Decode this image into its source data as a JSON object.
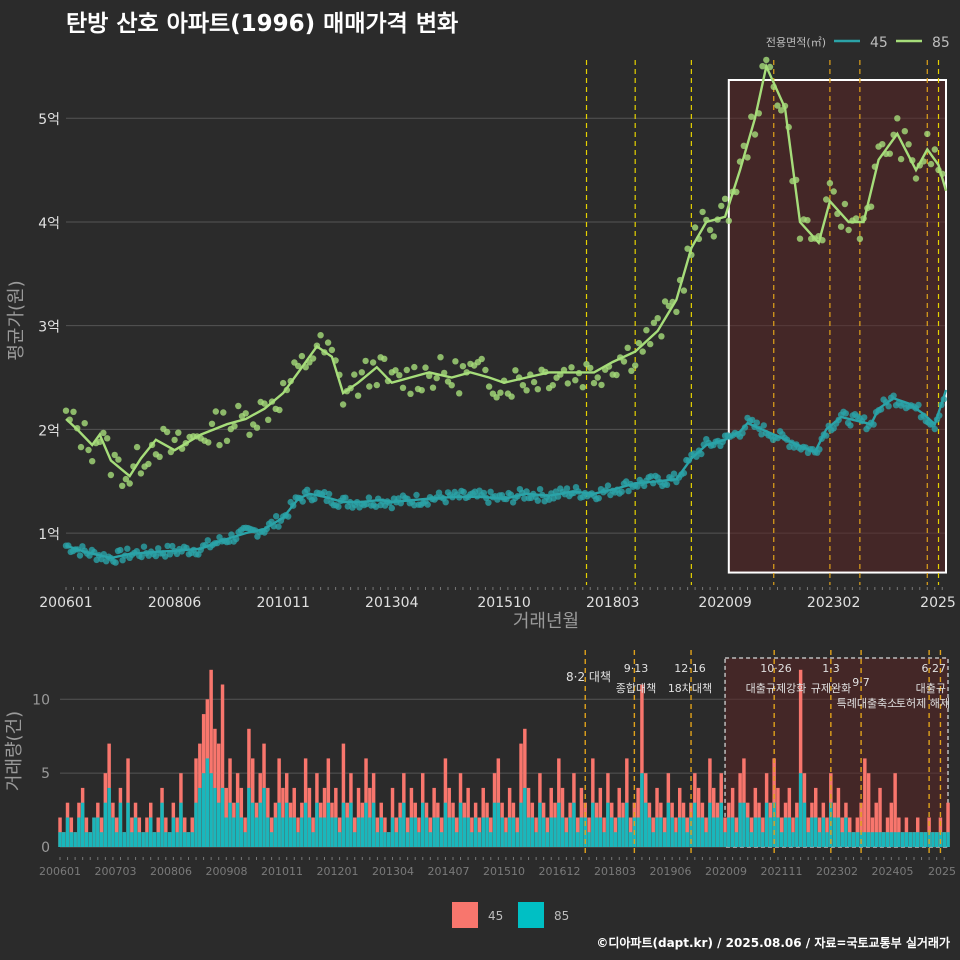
{
  "title": "탄방 산호 아파트(1996) 매매가격 변화",
  "footer": "©디아파트(dapt.kr) / 2025.08.06 / 자료=국토교통부 실거래가",
  "colors": {
    "bg": "#2b2b2b",
    "s45": "#2ba3a8",
    "s85": "#a6dd7a",
    "bar45": "#f8766d",
    "bar85": "#00bfc4",
    "policy": "#e6d200",
    "policy2": "#e0a21b",
    "band": "#5a2525"
  },
  "price_chart": {
    "ylabel": "평균가(원)",
    "xlabel": "거래년월",
    "y_ticks": [
      "1억",
      "2억",
      "3억",
      "4억",
      "5억"
    ],
    "x_ticks": [
      "200601",
      "200806",
      "201011",
      "201304",
      "201510",
      "201803",
      "202009",
      "202302",
      "2025"
    ],
    "legend_title": "전용면적(㎡)",
    "legend_items": [
      "45",
      "85"
    ]
  },
  "volume_chart": {
    "ylabel": "거래량(건)",
    "y_ticks": [
      "0",
      "5",
      "10"
    ],
    "x_ticks": [
      "200601",
      "200703",
      "200806",
      "200908",
      "201011",
      "201201",
      "201304",
      "201407",
      "201510",
      "201612",
      "201803",
      "201906",
      "202009",
      "202111",
      "202302",
      "202405",
      "2025"
    ],
    "policy_labels": [
      {
        "date": "8·2",
        "name": "대책"
      },
      {
        "date": "9·13",
        "name": "종합대책"
      },
      {
        "date": "12·16",
        "name": "18차대책"
      },
      {
        "date": "10·26",
        "name": "대출규제강화"
      },
      {
        "date": "1·3",
        "name": "규제완화"
      },
      {
        "date": "9·7",
        "name": "특례대출축소"
      },
      {
        "date": "",
        "name": "토허제 해제"
      },
      {
        "date": "6·27",
        "name": "대출규"
      }
    ],
    "legend_items": [
      "45",
      "85"
    ]
  },
  "chart_data": [
    {
      "type": "line",
      "title": "탄방 산호 아파트(1996) 매매가격 변화",
      "xlabel": "거래년월",
      "ylabel": "평균가(원)",
      "x_range": [
        "2006-01",
        "2025-08"
      ],
      "ylim": [
        0.5,
        5.6
      ],
      "unit": "억",
      "series": [
        {
          "name": "45",
          "points": [
            [
              "2006-01",
              0.88
            ],
            [
              "2006-06",
              0.82
            ],
            [
              "2007-01",
              0.76
            ],
            [
              "2007-06",
              0.8
            ],
            [
              "2008-01",
              0.82
            ],
            [
              "2008-06",
              0.83
            ],
            [
              "2009-01",
              0.85
            ],
            [
              "2009-06",
              0.92
            ],
            [
              "2010-01",
              1.0
            ],
            [
              "2010-06",
              1.04
            ],
            [
              "2010-11",
              1.15
            ],
            [
              "2011-03",
              1.33
            ],
            [
              "2011-06",
              1.38
            ],
            [
              "2011-10",
              1.35
            ],
            [
              "2012-03",
              1.3
            ],
            [
              "2012-08",
              1.3
            ],
            [
              "2013-01",
              1.32
            ],
            [
              "2013-04",
              1.3
            ],
            [
              "2013-10",
              1.32
            ],
            [
              "2014-04",
              1.34
            ],
            [
              "2014-10",
              1.35
            ],
            [
              "2015-04",
              1.35
            ],
            [
              "2015-10",
              1.33
            ],
            [
              "2016-04",
              1.38
            ],
            [
              "2016-10",
              1.36
            ],
            [
              "2017-04",
              1.4
            ],
            [
              "2017-10",
              1.38
            ],
            [
              "2018-03",
              1.42
            ],
            [
              "2018-09",
              1.48
            ],
            [
              "2019-03",
              1.5
            ],
            [
              "2019-08",
              1.52
            ],
            [
              "2019-12",
              1.72
            ],
            [
              "2020-04",
              1.85
            ],
            [
              "2020-09",
              1.9
            ],
            [
              "2021-01",
              1.98
            ],
            [
              "2021-03",
              2.06
            ],
            [
              "2022-09",
              1.78
            ],
            [
              "2022-12",
              2.0
            ],
            [
              "2023-04",
              2.12
            ],
            [
              "2023-12",
              2.05
            ],
            [
              "2024-02",
              2.2
            ],
            [
              "2024-06",
              2.3
            ],
            [
              "2024-10",
              2.25
            ],
            [
              "2025-02",
              2.15
            ],
            [
              "2025-05",
              2.05
            ],
            [
              "2025-08",
              2.38
            ]
          ]
        },
        {
          "name": "85",
          "points": [
            [
              "2006-01",
              2.1
            ],
            [
              "2006-04",
              2.0
            ],
            [
              "2006-08",
              1.85
            ],
            [
              "2006-10",
              1.95
            ],
            [
              "2007-01",
              1.7
            ],
            [
              "2007-06",
              1.55
            ],
            [
              "2007-09",
              1.72
            ],
            [
              "2008-01",
              1.9
            ],
            [
              "2008-06",
              1.8
            ],
            [
              "2009-01",
              1.95
            ],
            [
              "2009-08",
              2.05
            ],
            [
              "2010-01",
              2.1
            ],
            [
              "2010-06",
              2.2
            ],
            [
              "2010-11",
              2.35
            ],
            [
              "2011-03",
              2.55
            ],
            [
              "2011-08",
              2.8
            ],
            [
              "2011-12",
              2.7
            ],
            [
              "2012-03",
              2.35
            ],
            [
              "2012-07",
              2.45
            ],
            [
              "2012-12",
              2.6
            ],
            [
              "2013-04",
              2.45
            ],
            [
              "2013-09",
              2.5
            ],
            [
              "2014-02",
              2.55
            ],
            [
              "2014-08",
              2.5
            ],
            [
              "2015-01",
              2.55
            ],
            [
              "2015-06",
              2.5
            ],
            [
              "2015-10",
              2.45
            ],
            [
              "2016-04",
              2.5
            ],
            [
              "2016-10",
              2.55
            ],
            [
              "2017-04",
              2.55
            ],
            [
              "2017-10",
              2.55
            ],
            [
              "2018-03",
              2.65
            ],
            [
              "2018-09",
              2.75
            ],
            [
              "2019-03",
              2.95
            ],
            [
              "2019-08",
              3.25
            ],
            [
              "2019-12",
              3.75
            ],
            [
              "2020-04",
              4.0
            ],
            [
              "2020-09",
              4.05
            ],
            [
              "2021-01",
              4.5
            ],
            [
              "2021-05",
              5.0
            ],
            [
              "2021-08",
              5.5
            ],
            [
              "2022-01",
              5.1
            ],
            [
              "2022-05",
              4.0
            ],
            [
              "2022-10",
              3.8
            ],
            [
              "2023-01",
              4.2
            ],
            [
              "2023-06",
              4.0
            ],
            [
              "2023-10",
              4.0
            ],
            [
              "2024-02",
              4.6
            ],
            [
              "2024-07",
              4.85
            ],
            [
              "2024-12",
              4.5
            ],
            [
              "2025-03",
              4.7
            ],
            [
              "2025-06",
              4.55
            ],
            [
              "2025-08",
              4.3
            ]
          ]
        }
      ]
    },
    {
      "type": "bar",
      "ylabel": "거래량(건)",
      "x_range": [
        "2006-01",
        "2025-08"
      ],
      "ylim": [
        0,
        13
      ],
      "monthly_profile": {
        "45": [
          2,
          1,
          3,
          2,
          1,
          3,
          4,
          2,
          1,
          2,
          3,
          2,
          5,
          7,
          3,
          2,
          4,
          1,
          6,
          2,
          3,
          2,
          1,
          2,
          3,
          1,
          2,
          4,
          2,
          1,
          3,
          2,
          5,
          2,
          1,
          2,
          6,
          7,
          9,
          10,
          12,
          8,
          7,
          11,
          4,
          6,
          3,
          5,
          4,
          2,
          8,
          6,
          3,
          5,
          7,
          4,
          2,
          3,
          6,
          4,
          5,
          3,
          4,
          2,
          3,
          6,
          4,
          2,
          5,
          3,
          4,
          6,
          3,
          4,
          2,
          7,
          3,
          5,
          2,
          4,
          3,
          6,
          4,
          5,
          2,
          3,
          2,
          1,
          4,
          2,
          3,
          5,
          2,
          4,
          3,
          2,
          5,
          3,
          2,
          4,
          3,
          2,
          6,
          4,
          3,
          2,
          5,
          3,
          4,
          2,
          3,
          2,
          4,
          3,
          2,
          5,
          6,
          3,
          2,
          4,
          3,
          2,
          7,
          8,
          4,
          3,
          2,
          5,
          3,
          2,
          4,
          3,
          6,
          4,
          2,
          3,
          5,
          2,
          4,
          3,
          2,
          6,
          3,
          4,
          2,
          5,
          3,
          2,
          4,
          3,
          6,
          2,
          3,
          4,
          11,
          5,
          3,
          2,
          4,
          3,
          2,
          5,
          3,
          2,
          4,
          3,
          2,
          3,
          5,
          4,
          3,
          2,
          6,
          4,
          3,
          5,
          2,
          3,
          4,
          2,
          5,
          6,
          3,
          2,
          4,
          3,
          2,
          5,
          3,
          6,
          4,
          2,
          3,
          4,
          2,
          3,
          12,
          5,
          2,
          3,
          4,
          2,
          3,
          2,
          5,
          3,
          4,
          2,
          3,
          2,
          1,
          2,
          3,
          6,
          5,
          2,
          3,
          4,
          1,
          2,
          3,
          5,
          2,
          1,
          2,
          1,
          1,
          2,
          1,
          1,
          2,
          1,
          1,
          2,
          1,
          3,
          2,
          1,
          2,
          3,
          4,
          2,
          3,
          2,
          3,
          2,
          4,
          3
        ],
        "85": [
          1,
          1,
          2,
          1,
          1,
          2,
          3,
          1,
          1,
          2,
          2,
          1,
          3,
          4,
          2,
          1,
          3,
          1,
          3,
          1,
          2,
          1,
          1,
          1,
          2,
          1,
          1,
          3,
          1,
          1,
          2,
          1,
          3,
          1,
          1,
          1,
          3,
          4,
          5,
          6,
          5,
          4,
          3,
          4,
          2,
          3,
          2,
          3,
          2,
          1,
          4,
          3,
          2,
          3,
          4,
          2,
          1,
          2,
          3,
          2,
          3,
          2,
          2,
          1,
          2,
          3,
          2,
          1,
          3,
          2,
          2,
          3,
          2,
          2,
          1,
          3,
          2,
          3,
          1,
          2,
          2,
          3,
          2,
          3,
          1,
          2,
          1,
          1,
          2,
          1,
          2,
          3,
          1,
          2,
          2,
          1,
          3,
          2,
          1,
          2,
          2,
          1,
          3,
          2,
          2,
          1,
          3,
          2,
          2,
          1,
          2,
          1,
          2,
          2,
          1,
          3,
          3,
          2,
          1,
          2,
          2,
          1,
          3,
          4,
          2,
          2,
          1,
          3,
          2,
          1,
          2,
          2,
          3,
          2,
          1,
          2,
          3,
          1,
          2,
          2,
          1,
          3,
          2,
          2,
          1,
          3,
          2,
          1,
          2,
          2,
          3,
          1,
          2,
          2,
          5,
          3,
          2,
          1,
          2,
          2,
          1,
          3,
          2,
          1,
          2,
          2,
          1,
          2,
          3,
          2,
          2,
          1,
          3,
          2,
          2,
          3,
          1,
          2,
          2,
          1,
          3,
          3,
          2,
          1,
          2,
          2,
          1,
          3,
          2,
          3,
          2,
          1,
          2,
          2,
          1,
          2,
          5,
          3,
          1,
          2,
          2,
          1,
          2,
          1,
          3,
          2,
          2,
          1,
          2,
          1,
          1,
          1,
          1,
          1,
          1,
          1,
          1,
          1,
          1,
          1,
          1,
          1,
          1,
          1,
          1,
          1,
          1,
          1,
          1,
          1,
          1,
          1,
          1,
          1,
          1,
          1,
          1,
          1,
          1,
          1,
          1,
          1,
          1,
          1,
          1,
          1
        ]
      }
    }
  ]
}
